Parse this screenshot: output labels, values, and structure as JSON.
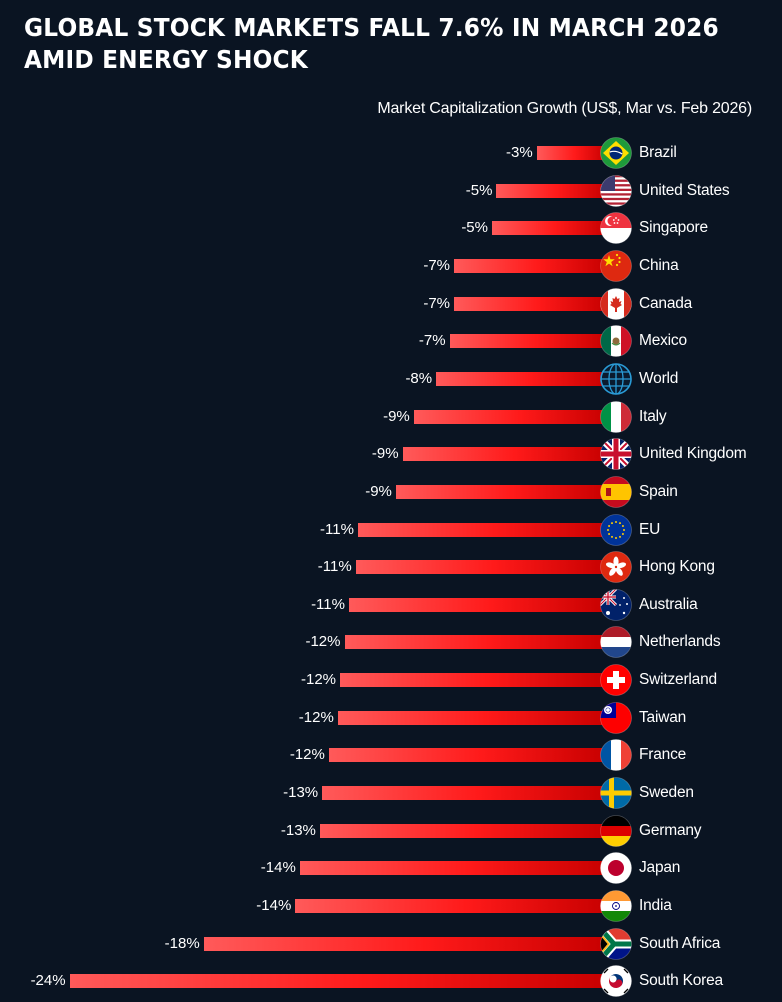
{
  "header": {
    "title": "GLOBAL STOCK MARKETS FALL 7.6% IN MARCH 2026\n AMID ENERGY SHOCK",
    "subtitle": "Market Capitalization Growth (US$, Mar vs. Feb 2026)"
  },
  "colors": {
    "background": "#0a1422",
    "bar_light": "#ff5a5a",
    "bar_mid": "#ff1a1a",
    "bar_dark": "#c80000",
    "text": "#ffffff"
  },
  "chart_data": {
    "type": "bar",
    "orientation": "horizontal",
    "title": "GLOBAL STOCK MARKETS FALL 7.6% IN MARCH 2026 AMID ENERGY SHOCK",
    "subtitle": "Market Capitalization Growth (US$, Mar vs. Feb 2026)",
    "xlabel": "",
    "ylabel": "",
    "unit": "%",
    "xlim": [
      -24,
      0
    ],
    "grid": false,
    "categories": [
      "Brazil",
      "United States",
      "Singapore",
      "China",
      "Canada",
      "Mexico",
      "World",
      "Italy",
      "United Kingdom",
      "Spain",
      "EU",
      "Hong Kong",
      "Australia",
      "Netherlands",
      "Switzerland",
      "Taiwan",
      "France",
      "Sweden",
      "Germany",
      "Japan",
      "India",
      "South Africa",
      "South Korea"
    ],
    "values": [
      -3,
      -5,
      -5,
      -7,
      -7,
      -7,
      -8,
      -9,
      -9,
      -9,
      -11,
      -11,
      -11,
      -12,
      -12,
      -12,
      -12,
      -13,
      -13,
      -14,
      -14,
      -18,
      -24
    ],
    "value_labels": [
      "-3%",
      "-5%",
      "-5%",
      "-7%",
      "-7%",
      "-7%",
      "-8%",
      "-9%",
      "-9%",
      "-9%",
      "-11%",
      "-11%",
      "-11%",
      "-12%",
      "-12%",
      "-12%",
      "-12%",
      "-13%",
      "-13%",
      "-14%",
      "-14%",
      "-18%",
      "-24%"
    ],
    "bar_extents_percent": [
      -3.1,
      -4.9,
      -5.1,
      -6.8,
      -6.8,
      -7.0,
      -7.6,
      -8.6,
      -9.1,
      -9.4,
      -11.1,
      -11.2,
      -11.5,
      -11.7,
      -11.9,
      -12.0,
      -12.4,
      -12.7,
      -12.8,
      -13.7,
      -13.9,
      -18.0,
      -24.0
    ],
    "flag_icons": [
      "brazil-flag-icon",
      "united-states-flag-icon",
      "singapore-flag-icon",
      "china-flag-icon",
      "canada-flag-icon",
      "mexico-flag-icon",
      "world-globe-icon",
      "italy-flag-icon",
      "united-kingdom-flag-icon",
      "spain-flag-icon",
      "eu-flag-icon",
      "hong-kong-flag-icon",
      "australia-flag-icon",
      "netherlands-flag-icon",
      "switzerland-flag-icon",
      "taiwan-flag-icon",
      "france-flag-icon",
      "sweden-flag-icon",
      "germany-flag-icon",
      "japan-flag-icon",
      "india-flag-icon",
      "south-africa-flag-icon",
      "south-korea-flag-icon"
    ]
  }
}
